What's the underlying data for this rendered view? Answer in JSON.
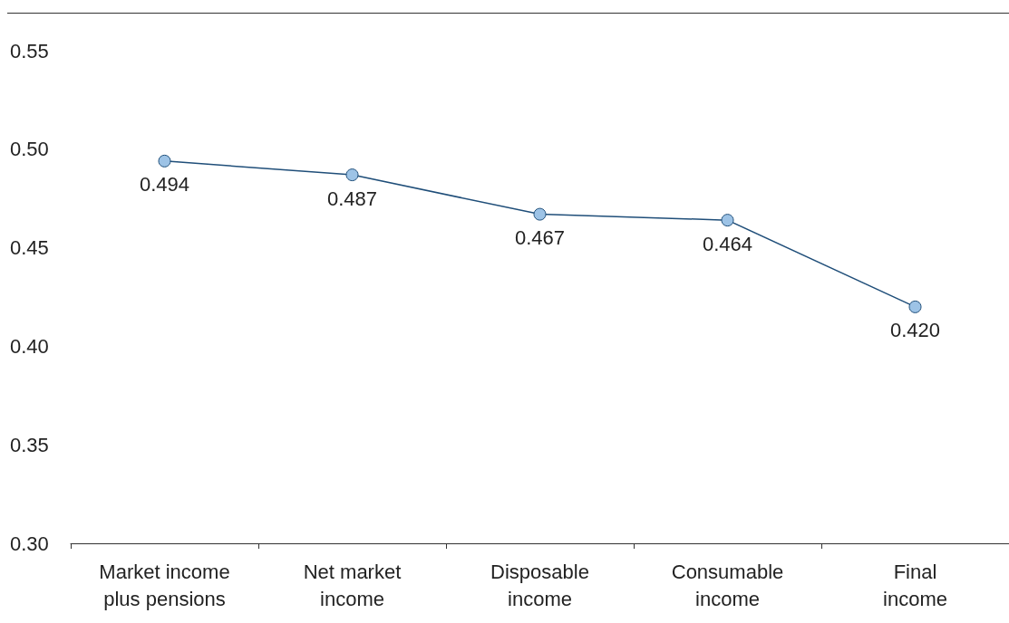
{
  "chart_data": {
    "type": "line",
    "categories": [
      "Market income\nplus pensions",
      "Net market\nincome",
      "Disposable\nincome",
      "Consumable\nincome",
      "Final\nincome"
    ],
    "series": [
      {
        "color": "#1f4e79",
        "values": [
          0.494,
          0.487,
          0.467,
          0.464,
          0.42
        ],
        "value_labels": [
          "0.494",
          "0.487",
          "0.467",
          "0.464",
          "0.420"
        ]
      }
    ],
    "ylim": [
      0.3,
      0.55
    ],
    "yticks": [
      {
        "value": 0.3,
        "label": "0.30"
      },
      {
        "value": 0.35,
        "label": "0.35"
      },
      {
        "value": 0.4,
        "label": "0.40"
      },
      {
        "value": 0.45,
        "label": "0.45"
      },
      {
        "value": 0.5,
        "label": "0.50"
      },
      {
        "value": 0.55,
        "label": "0.55"
      }
    ],
    "grid": false,
    "marker": "circle",
    "line_style": "solid"
  }
}
